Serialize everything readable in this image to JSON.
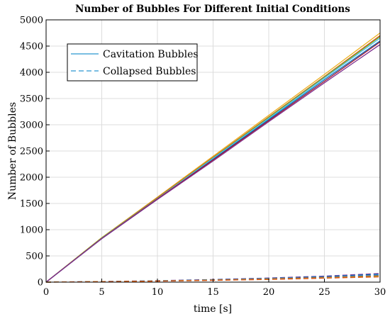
{
  "chart_data": {
    "type": "line",
    "title": "Number of Bubbles For Different Initial Conditions",
    "xlabel": "time [s]",
    "ylabel": "Number of Bubbles",
    "xlim": [
      0,
      30
    ],
    "ylim": [
      0,
      5000
    ],
    "xticks": [
      0,
      5,
      10,
      15,
      20,
      25,
      30
    ],
    "yticks": [
      0,
      500,
      1000,
      1500,
      2000,
      2500,
      3000,
      3500,
      4000,
      4500,
      5000
    ],
    "grid": true,
    "legend": {
      "placement": "top-left",
      "entries": [
        {
          "label": "Cavitation Bubbles",
          "style": "solid",
          "color": "#4fa8d8"
        },
        {
          "label": "Collapsed Bubbles",
          "style": "dashed",
          "color": "#4fa8d8"
        }
      ]
    },
    "x": [
      0,
      5,
      10,
      15,
      20,
      25,
      30
    ],
    "series": [
      {
        "group": "cavitation",
        "style": "solid",
        "color": "#edb120",
        "values": [
          0,
          850,
          1620,
          2400,
          3180,
          3960,
          4750
        ]
      },
      {
        "group": "cavitation",
        "style": "solid",
        "color": "#d95319",
        "values": [
          0,
          840,
          1610,
          2380,
          3150,
          3920,
          4700
        ]
      },
      {
        "group": "cavitation",
        "style": "solid",
        "color": "#77ac30",
        "values": [
          0,
          845,
          1600,
          2370,
          3140,
          3910,
          4680
        ]
      },
      {
        "group": "cavitation",
        "style": "solid",
        "color": "#4dbeee",
        "values": [
          0,
          835,
          1590,
          2360,
          3120,
          3890,
          4650
        ]
      },
      {
        "group": "cavitation",
        "style": "solid",
        "color": "#0072bd",
        "values": [
          0,
          830,
          1580,
          2340,
          3100,
          3860,
          4600
        ]
      },
      {
        "group": "cavitation",
        "style": "solid",
        "color": "#a2142f",
        "values": [
          0,
          832,
          1585,
          2330,
          3080,
          3830,
          4580
        ]
      },
      {
        "group": "cavitation",
        "style": "solid",
        "color": "#7e2f8e",
        "values": [
          0,
          828,
          1575,
          2310,
          3060,
          3800,
          4530
        ]
      },
      {
        "group": "collapsed",
        "style": "dashed",
        "color": "#7e2f8e",
        "values": [
          0,
          12,
          28,
          50,
          78,
          115,
          165
        ]
      },
      {
        "group": "collapsed",
        "style": "dashed",
        "color": "#0072bd",
        "values": [
          0,
          11,
          26,
          46,
          72,
          105,
          150
        ]
      },
      {
        "group": "collapsed",
        "style": "dashed",
        "color": "#4dbeee",
        "values": [
          0,
          10,
          24,
          42,
          66,
          96,
          135
        ]
      },
      {
        "group": "collapsed",
        "style": "dashed",
        "color": "#a2142f",
        "values": [
          0,
          10,
          22,
          40,
          62,
          90,
          125
        ]
      },
      {
        "group": "collapsed",
        "style": "dashed",
        "color": "#77ac30",
        "values": [
          0,
          9,
          21,
          38,
          58,
          84,
          115
        ]
      },
      {
        "group": "collapsed",
        "style": "dashed",
        "color": "#edb120",
        "values": [
          0,
          9,
          20,
          36,
          55,
          80,
          108
        ]
      },
      {
        "group": "collapsed",
        "style": "dashed",
        "color": "#d95319",
        "values": [
          0,
          8,
          19,
          34,
          52,
          76,
          100
        ]
      }
    ]
  }
}
